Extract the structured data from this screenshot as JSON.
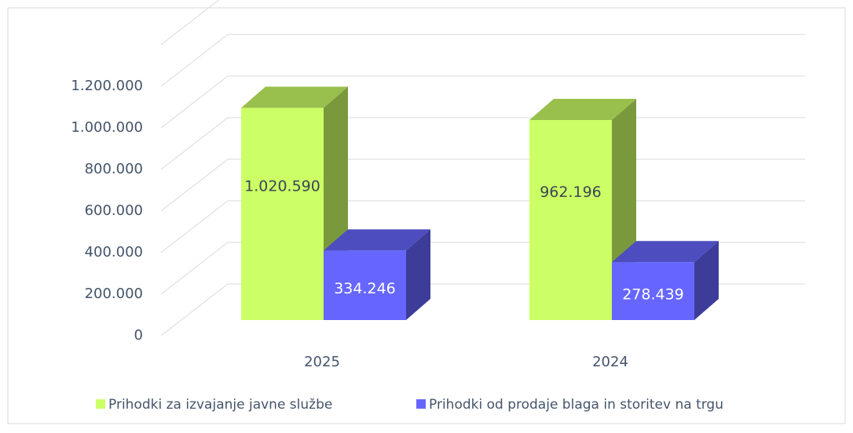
{
  "chart_data": {
    "type": "bar3d",
    "categories": [
      "2025",
      "2024"
    ],
    "series": [
      {
        "name": "Prihodki za izvajanje javne službe",
        "color": "#ccff66",
        "values": [
          1020590,
          962196
        ],
        "value_labels": [
          "1.020.590",
          "962.196"
        ]
      },
      {
        "name": "Prihodki od prodaje blaga in storitev na trgu",
        "color": "#6666ff",
        "values": [
          334246,
          278439
        ],
        "value_labels": [
          "334.246",
          "278.439"
        ]
      }
    ],
    "ylim": [
      0,
      1200000
    ],
    "yticks": [
      0,
      {
        "value": 200000,
        "label": "200.000"
      },
      {
        "value": 400000,
        "label": "400.000"
      },
      {
        "value": 600000,
        "label": "600.000"
      },
      {
        "value": 800000,
        "label": "800.000"
      },
      {
        "value": 1000000,
        "label": "1.000.000"
      },
      {
        "value": 1200000,
        "label": "1.200.000"
      }
    ],
    "grid": true,
    "legend": "bottom"
  }
}
